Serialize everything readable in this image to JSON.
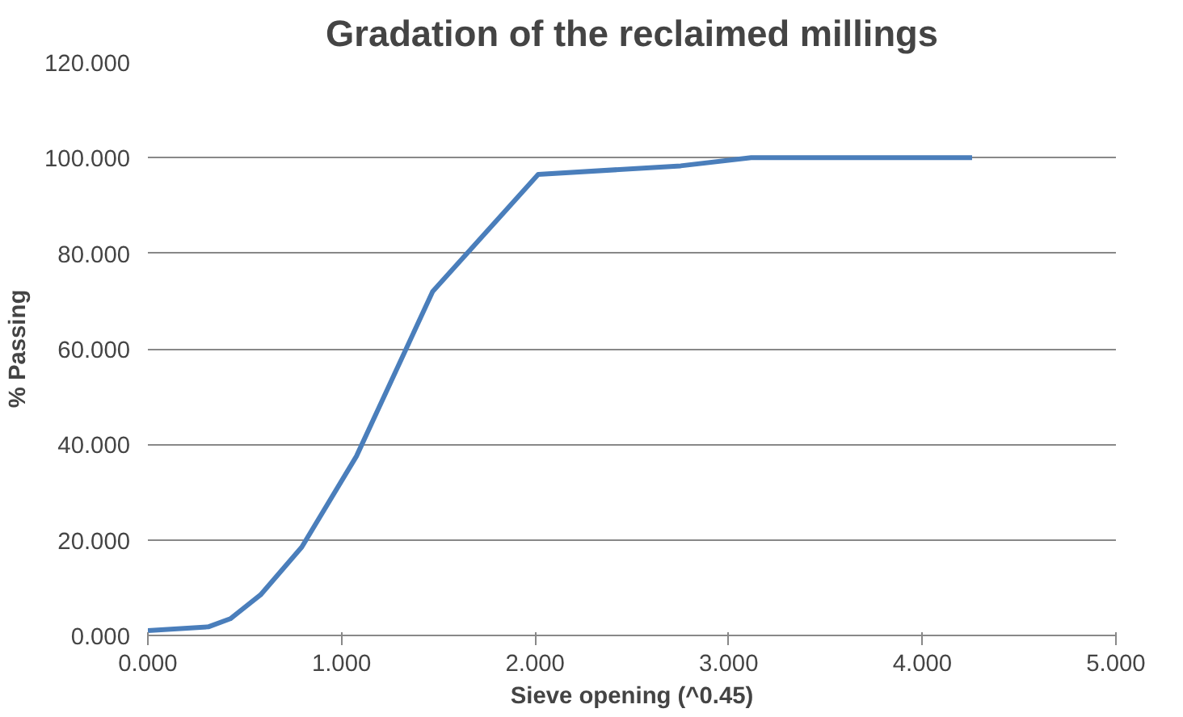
{
  "chart_data": {
    "type": "line",
    "title": "Gradation of the reclaimed millings",
    "xlabel": "Sieve opening (^0.45)",
    "ylabel": "% Passing",
    "x": [
      0,
      0.312,
      0.426,
      0.582,
      0.795,
      1.077,
      1.471,
      2.016,
      2.752,
      3.116,
      4.257
    ],
    "series": [
      {
        "color": "#4a7ebb",
        "values": [
          1.0,
          1.8,
          3.5,
          8.5,
          18.5,
          37.5,
          72.0,
          96.5,
          98.3,
          100.0,
          100.0
        ]
      }
    ],
    "xlim": [
      0,
      5
    ],
    "ylim": [
      0,
      120
    ],
    "xticks": [
      {
        "value": 0,
        "label": "0.000"
      },
      {
        "value": 1,
        "label": "1.000"
      },
      {
        "value": 2,
        "label": "2.000"
      },
      {
        "value": 3,
        "label": "3.000"
      },
      {
        "value": 4,
        "label": "4.000"
      },
      {
        "value": 5,
        "label": "5.000"
      }
    ],
    "yticks": [
      {
        "value": 0,
        "label": "0.000"
      },
      {
        "value": 20,
        "label": "20.000"
      },
      {
        "value": 40,
        "label": "40.000"
      },
      {
        "value": 60,
        "label": "60.000"
      },
      {
        "value": 80,
        "label": "80.000"
      },
      {
        "value": 100,
        "label": "100.000"
      },
      {
        "value": 120,
        "label": "120.000"
      }
    ],
    "grid": "y",
    "marker": "none",
    "line_style": "solid"
  }
}
